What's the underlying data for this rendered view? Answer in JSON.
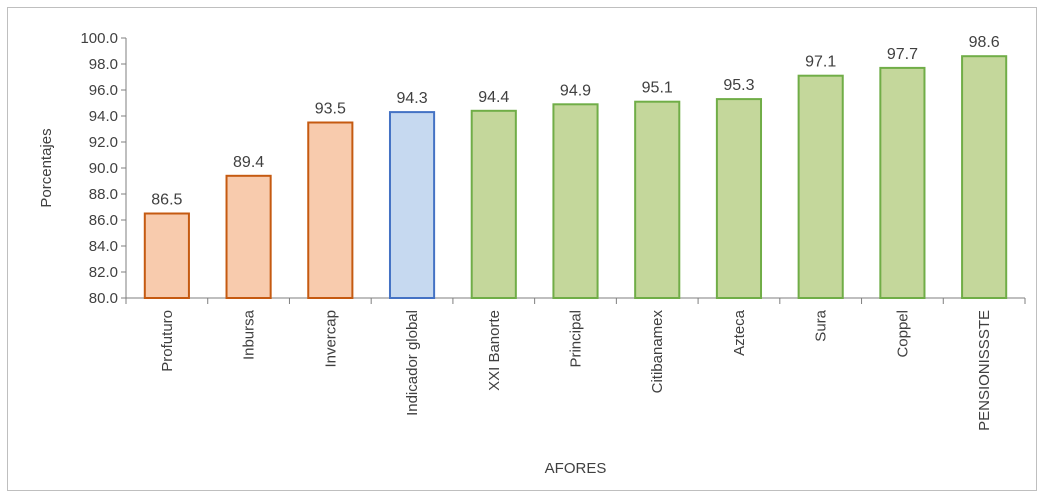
{
  "chart_data": {
    "type": "bar",
    "title": "",
    "xlabel": "AFORES",
    "ylabel": "Porcentajes",
    "ylim": [
      80,
      100
    ],
    "ytick_step": 2,
    "ytick_labels": [
      "80.0",
      "82.0",
      "84.0",
      "86.0",
      "88.0",
      "90.0",
      "92.0",
      "94.0",
      "96.0",
      "98.0",
      "100.0"
    ],
    "grid": false,
    "legend": "none",
    "categories": [
      "Profuturo",
      "Inbursa",
      "Invercap",
      "Indicador global",
      "XXI Banorte",
      "Principal",
      "Citibanamex",
      "Azteca",
      "Sura",
      "Coppel",
      "PENSIONISSSTE"
    ],
    "values": [
      86.5,
      89.4,
      93.5,
      94.3,
      94.4,
      94.9,
      95.1,
      95.3,
      97.1,
      97.7,
      98.6
    ],
    "value_labels": [
      "86.5",
      "89.4",
      "93.5",
      "94.3",
      "94.4",
      "94.9",
      "95.1",
      "95.3",
      "97.1",
      "97.7",
      "98.6"
    ],
    "bar_fills": [
      "#f8cbad",
      "#f8cbad",
      "#f8cbad",
      "#c6d9f0",
      "#c4d79b",
      "#c4d79b",
      "#c4d79b",
      "#c4d79b",
      "#c4d79b",
      "#c4d79b",
      "#c4d79b"
    ],
    "bar_strokes": [
      "#c55a11",
      "#c55a11",
      "#c55a11",
      "#4472c4",
      "#70ad47",
      "#70ad47",
      "#70ad47",
      "#70ad47",
      "#70ad47",
      "#70ad47",
      "#70ad47"
    ]
  }
}
